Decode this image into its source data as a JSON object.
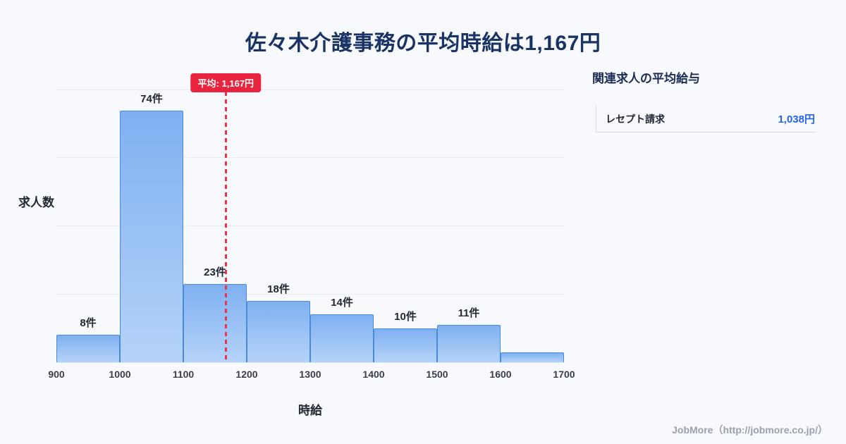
{
  "page": {
    "title": "佐々木介護事務の平均時給は1,167円",
    "background": "#f7f9fc"
  },
  "chart_data": {
    "type": "bar",
    "title": "佐々木介護事務の平均時給は1,167円",
    "xlabel": "時給",
    "ylabel": "求人数",
    "bin_edges": [
      900,
      1000,
      1100,
      1200,
      1300,
      1400,
      1500,
      1600,
      1700
    ],
    "x_ticks": [
      "900",
      "1000",
      "1100",
      "1200",
      "1300",
      "1400",
      "1500",
      "1600",
      "1700"
    ],
    "values": [
      8,
      74,
      23,
      18,
      14,
      10,
      11,
      3
    ],
    "labels": [
      "8件",
      "74件",
      "23件",
      "18件",
      "14件",
      "10件",
      "11件",
      ""
    ],
    "ylim": [
      0,
      86
    ],
    "grid_step": 20,
    "grid": "on",
    "average": 1167,
    "average_label": "平均: 1,167円",
    "colors": {
      "bar_fill_top": "#7fb0f1",
      "bar_fill_bottom": "#b5d3f8",
      "bar_border": "#4a8bd9",
      "average_line": "#e8354c",
      "average_badge": "#e8243f"
    }
  },
  "sidebar": {
    "heading": "関連求人の平均給与",
    "items": [
      {
        "label": "レセプト請求",
        "value": "1,038円"
      }
    ]
  },
  "footer": {
    "credit": "JobMore（http://jobmore.co.jp/）"
  }
}
